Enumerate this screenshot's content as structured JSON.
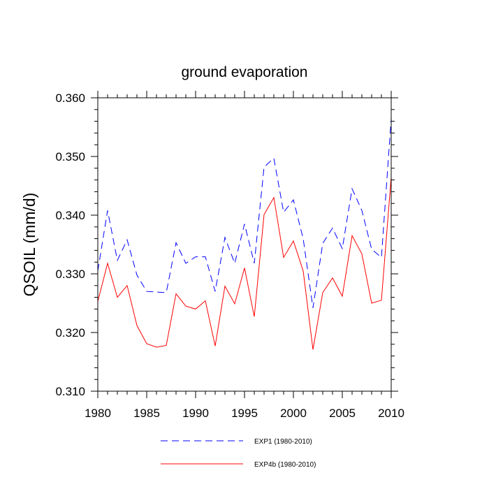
{
  "chart_data": {
    "type": "line",
    "title": "ground evaporation",
    "xlabel": "",
    "ylabel": "QSOIL  (mm/d)",
    "xlim": [
      1980,
      2010
    ],
    "ylim": [
      0.31,
      0.36
    ],
    "x_ticks": [
      1980,
      1985,
      1990,
      1995,
      2000,
      2005,
      2010
    ],
    "x_tick_labels": [
      "1980",
      "1985",
      "1990",
      "1995",
      "2000",
      "2005",
      "2010"
    ],
    "y_ticks": [
      0.31,
      0.32,
      0.33,
      0.34,
      0.35,
      0.36
    ],
    "y_tick_labels": [
      "0.310",
      "0.320",
      "0.330",
      "0.340",
      "0.350",
      "0.360"
    ],
    "legend_position": "bottom",
    "grid": false,
    "x": [
      1980,
      1981,
      1982,
      1983,
      1984,
      1985,
      1986,
      1987,
      1988,
      1989,
      1990,
      1991,
      1992,
      1993,
      1994,
      1995,
      1996,
      1997,
      1998,
      1999,
      2000,
      2001,
      2002,
      2003,
      2004,
      2005,
      2006,
      2007,
      2008,
      2009,
      2010
    ],
    "series": [
      {
        "name": "EXP1 (1980-2010)",
        "color": "#0000ff",
        "line_style": "dashed",
        "values": [
          0.3305,
          0.3408,
          0.3323,
          0.3358,
          0.3298,
          0.327,
          0.3269,
          0.3268,
          0.3353,
          0.3318,
          0.3329,
          0.3329,
          0.327,
          0.3362,
          0.3318,
          0.3385,
          0.3318,
          0.3482,
          0.3497,
          0.3405,
          0.3426,
          0.336,
          0.3242,
          0.3352,
          0.3378,
          0.3343,
          0.3445,
          0.3408,
          0.3342,
          0.3328,
          0.3565
        ]
      },
      {
        "name": "EXP4b (1980-2010)",
        "color": "#ff0000",
        "line_style": "solid",
        "values": [
          0.3253,
          0.3318,
          0.326,
          0.328,
          0.3212,
          0.3181,
          0.3175,
          0.3178,
          0.3266,
          0.3245,
          0.324,
          0.3254,
          0.3177,
          0.3279,
          0.3249,
          0.331,
          0.3227,
          0.3401,
          0.343,
          0.3328,
          0.3356,
          0.3305,
          0.3171,
          0.3268,
          0.3293,
          0.3262,
          0.3365,
          0.3334,
          0.325,
          0.3255,
          0.3465
        ]
      }
    ]
  }
}
